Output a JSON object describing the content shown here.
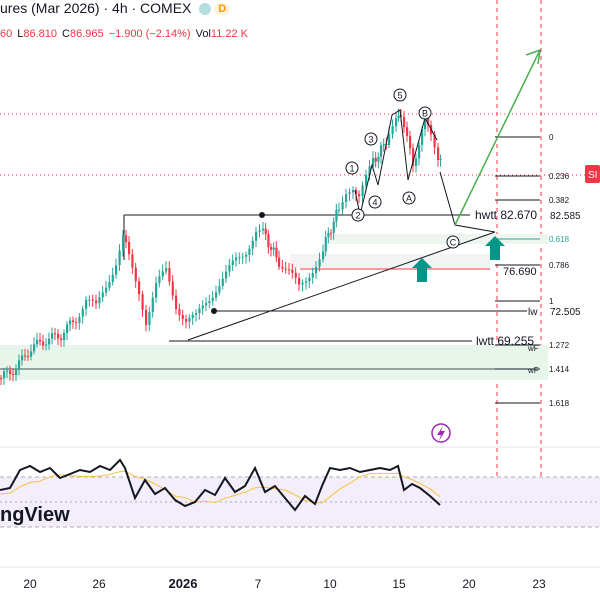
{
  "header": {
    "title": "ures (Mar 2026) · 4h · COMEX",
    "ohlc": [
      {
        "label": "",
        "value": "60"
      },
      {
        "label": "L",
        "value": "86.810"
      },
      {
        "label": "C",
        "value": "86.965"
      },
      {
        "label": "",
        "value": "−1.900 (−2.14%)"
      },
      {
        "label": "Vol",
        "value": "11.22 K"
      }
    ],
    "badge": "D",
    "colors": {
      "green": "#26a69a",
      "red": "#f23645"
    }
  },
  "price_labels": {
    "hwtt": "hwtt 82.670",
    "level_82": "82.585",
    "level_76": "76.690",
    "lw": "lw",
    "level_72": "72.505",
    "lwtt": "lwtt 69.255",
    "wf_upper": "wF",
    "wf_lower": "wF",
    "side_label": "SI"
  },
  "fib_labels": [
    "0",
    "0.236",
    "0.382",
    "0.618",
    "0.786",
    "1",
    "1.272",
    "1.414",
    "1.618"
  ],
  "wave_labels": [
    "1",
    "2",
    "3",
    "4",
    "5",
    "A",
    "B",
    "C"
  ],
  "x_axis": [
    "20",
    "26",
    "2026",
    "7",
    "10",
    "15",
    "20",
    "23"
  ],
  "logo": "ngView",
  "icons": {
    "flash": "flash-icon",
    "arrows": "up-arrow-icon"
  },
  "chart_data": {
    "type": "candlestick",
    "title": "ures (Mar 2026) · 4h · COMEX",
    "x_tick_labels": [
      "20",
      "26",
      "2026",
      "7",
      "10",
      "15",
      "20",
      "23"
    ],
    "price_levels": [
      82.67,
      82.585,
      76.69,
      72.505,
      69.255
    ],
    "fib_levels": [
      "0",
      "0.236",
      "0.382",
      "0.618",
      "0.786",
      "1",
      "1.272",
      "1.414",
      "1.618"
    ],
    "oscillator": "RSI",
    "last": {
      "low": 86.81,
      "close": 86.965,
      "change": -1.9,
      "change_pct": -2.14,
      "volume": "11.22 K"
    }
  }
}
